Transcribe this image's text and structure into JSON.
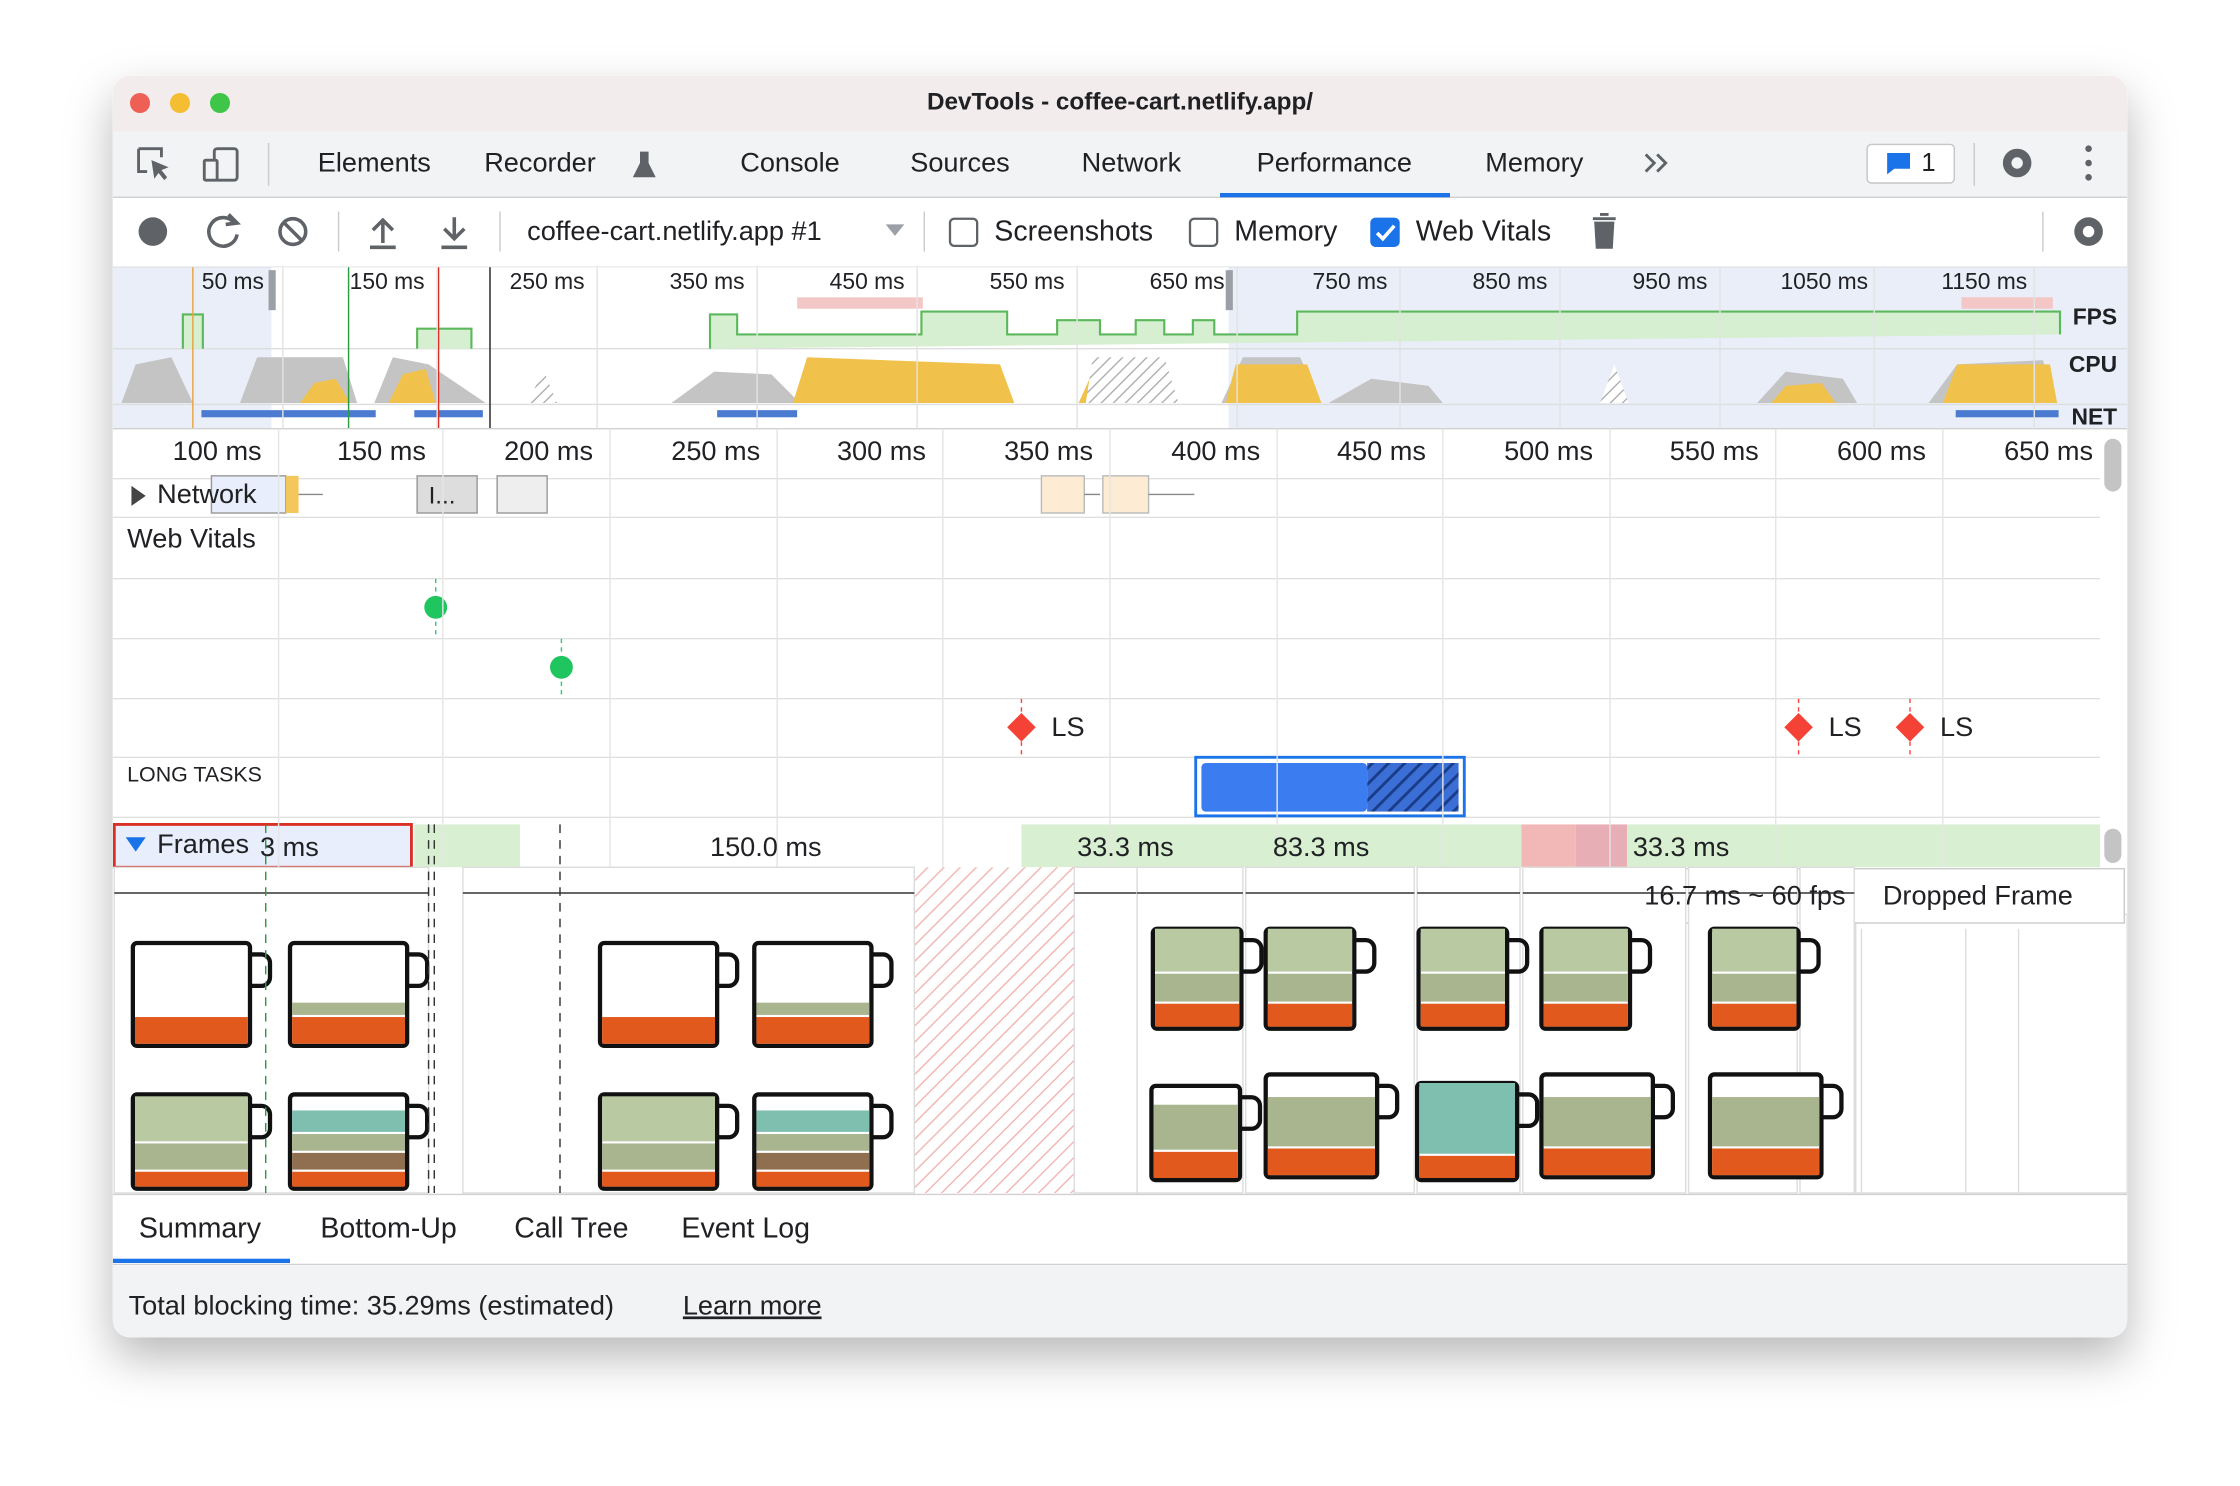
{
  "window": {
    "title": "DevTools - coffee-cart.netlify.app/"
  },
  "tabs": [
    "Elements",
    "Recorder",
    "Console",
    "Sources",
    "Network",
    "Performance",
    "Memory"
  ],
  "issues_count": "1",
  "toolbar": {
    "profile": "coffee-cart.netlify.app #1",
    "checkboxes": [
      {
        "label": "Screenshots",
        "checked": false
      },
      {
        "label": "Memory",
        "checked": false
      },
      {
        "label": "Web Vitals",
        "checked": true
      }
    ]
  },
  "overview": {
    "ticks": [
      "50 ms",
      "150 ms",
      "250 ms",
      "350 ms",
      "450 ms",
      "550 ms",
      "650 ms",
      "750 ms",
      "850 ms",
      "950 ms",
      "1050 ms",
      "1150 ms"
    ],
    "tracks": [
      "FPS",
      "CPU",
      "NET"
    ]
  },
  "timeline": {
    "ticks": [
      "100 ms",
      "150 ms",
      "200 ms",
      "250 ms",
      "300 ms",
      "350 ms",
      "400 ms",
      "450 ms",
      "500 ms",
      "550 ms",
      "600 ms",
      "650 ms"
    ],
    "network": "Network",
    "network_request": "I...",
    "web_vitals": "Web Vitals",
    "vitals_markers": [
      "LS",
      "LS",
      "LS"
    ],
    "long_tasks": "LONG TASKS",
    "frames": "Frames",
    "frame_labels": [
      "3 ms",
      "150.0 ms",
      "33.3 ms",
      "83.3 ms",
      "33.3 ms"
    ]
  },
  "tooltip": {
    "timing": "16.7 ms ~ 60 fps",
    "text": "Dropped Frame"
  },
  "bottom_tabs": [
    "Summary",
    "Bottom-Up",
    "Call Tree",
    "Event Log"
  ],
  "footer": {
    "text": "Total blocking time: 35.29ms (estimated)",
    "link": "Learn more"
  }
}
